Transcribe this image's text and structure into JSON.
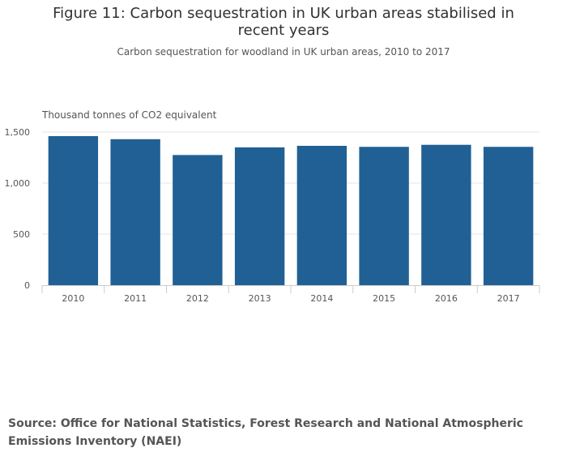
{
  "title": "Figure 11: Carbon sequestration in UK urban areas stabilised in recent years",
  "subtitle": "Carbon sequestration for woodland in UK urban areas, 2010 to 2017",
  "source": "Source: Office for National Statistics, Forest Research and National Atmospheric Emissions Inventory (NAEI)",
  "chart_data": {
    "type": "bar",
    "title": "Figure 11: Carbon sequestration in UK urban areas stabilised in recent years",
    "subtitle": "Carbon sequestration for woodland in UK urban areas, 2010 to 2017",
    "xlabel": "",
    "ylabel": "Thousand tonnes of CO2 equivalent",
    "categories": [
      "2010",
      "2011",
      "2012",
      "2013",
      "2014",
      "2015",
      "2016",
      "2017"
    ],
    "values": [
      1460,
      1430,
      1275,
      1350,
      1365,
      1355,
      1375,
      1355
    ],
    "ylim": [
      0,
      1500
    ],
    "yticks": [
      0,
      500,
      1000,
      1500
    ],
    "ytick_labels": [
      "0",
      "500",
      "1,000",
      "1,500"
    ],
    "grid": true,
    "legend": "none",
    "bar_color": "#206095",
    "grid_color": "#e5e5e5",
    "axis_color": "#cccccc"
  }
}
